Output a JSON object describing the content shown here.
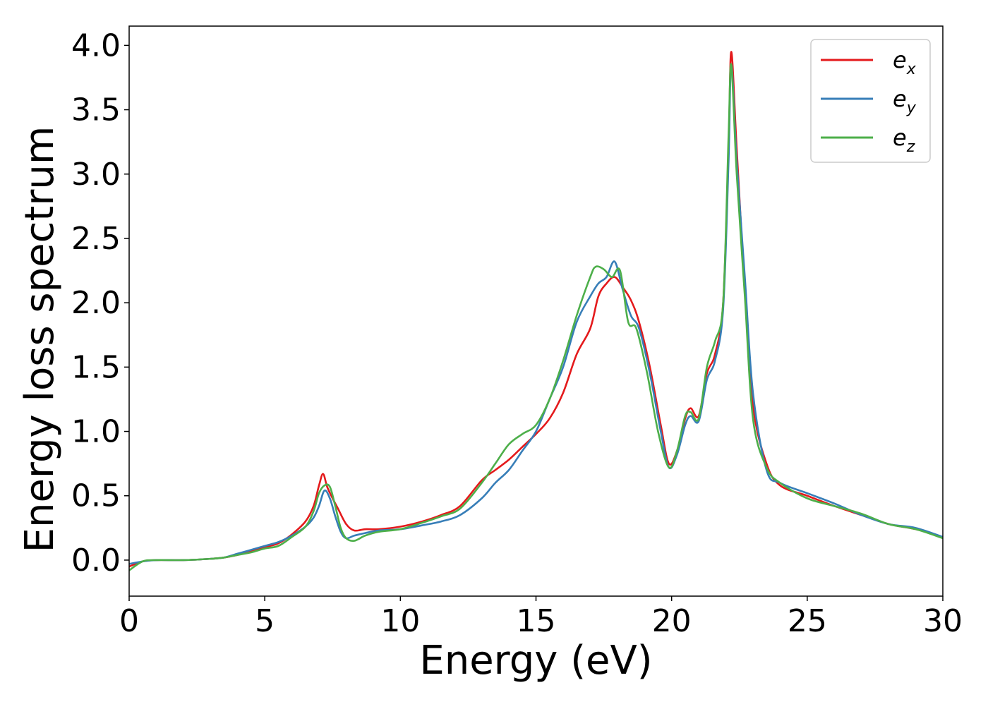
{
  "chart_data": {
    "type": "line",
    "title": "",
    "xlabel": "Energy (eV)",
    "ylabel": "Energy loss spectrum",
    "xlim": [
      0,
      30
    ],
    "ylim": [
      -0.28,
      4.15
    ],
    "xticks": [
      0,
      5,
      10,
      15,
      20,
      25,
      30
    ],
    "xtick_labels": [
      "0",
      "5",
      "10",
      "15",
      "20",
      "25",
      "30"
    ],
    "yticks": [
      0.0,
      0.5,
      1.0,
      1.5,
      2.0,
      2.5,
      3.0,
      3.5,
      4.0
    ],
    "ytick_labels": [
      "0.0",
      "0.5",
      "1.0",
      "1.5",
      "2.0",
      "2.5",
      "3.0",
      "3.5",
      "4.0"
    ],
    "grid": false,
    "legend_position": "top-right",
    "series": [
      {
        "name": "e",
        "subscript": "x",
        "color": "#e41a1c",
        "x": [
          0,
          0.5,
          1,
          2,
          3,
          3.5,
          4,
          4.5,
          5,
          5.5,
          6,
          6.5,
          6.8,
          7.0,
          7.15,
          7.3,
          7.5,
          7.7,
          8.0,
          8.3,
          8.7,
          9.2,
          10,
          10.8,
          11.5,
          12.2,
          13,
          13.5,
          14,
          14.5,
          15,
          15.5,
          16,
          16.5,
          17,
          17.3,
          17.6,
          17.9,
          18.2,
          18.5,
          18.8,
          19.2,
          19.6,
          19.9,
          20.2,
          20.5,
          20.7,
          21.0,
          21.3,
          21.6,
          21.9,
          22.1,
          22.2,
          22.4,
          22.7,
          23.0,
          23.5,
          24,
          25,
          26,
          27,
          28,
          29,
          30
        ],
        "y": [
          -0.05,
          -0.01,
          0.0,
          0.0,
          0.01,
          0.02,
          0.04,
          0.07,
          0.1,
          0.13,
          0.2,
          0.3,
          0.42,
          0.58,
          0.67,
          0.57,
          0.48,
          0.4,
          0.28,
          0.23,
          0.24,
          0.24,
          0.26,
          0.3,
          0.35,
          0.42,
          0.62,
          0.7,
          0.78,
          0.88,
          0.98,
          1.1,
          1.3,
          1.6,
          1.8,
          2.05,
          2.15,
          2.2,
          2.12,
          2.02,
          1.85,
          1.5,
          1.05,
          0.75,
          0.85,
          1.1,
          1.18,
          1.12,
          1.45,
          1.6,
          2.0,
          3.2,
          3.95,
          3.2,
          2.1,
          1.2,
          0.75,
          0.58,
          0.5,
          0.42,
          0.35,
          0.28,
          0.24,
          0.18
        ]
      },
      {
        "name": "e",
        "subscript": "y",
        "color": "#377eb8",
        "x": [
          0,
          0.5,
          1,
          2,
          3,
          3.5,
          4,
          4.5,
          5,
          5.5,
          6,
          6.5,
          6.8,
          7.0,
          7.2,
          7.4,
          7.6,
          7.8,
          8.0,
          8.3,
          8.7,
          9.2,
          10,
          10.8,
          11.5,
          12.2,
          13,
          13.5,
          14,
          14.5,
          15,
          15.5,
          16,
          16.5,
          17,
          17.3,
          17.6,
          17.9,
          18.2,
          18.5,
          18.8,
          19.2,
          19.6,
          19.9,
          20.2,
          20.5,
          20.7,
          21.0,
          21.3,
          21.6,
          21.9,
          22.1,
          22.2,
          22.4,
          22.7,
          23.0,
          23.5,
          24,
          25,
          26,
          27,
          28,
          29,
          30
        ],
        "y": [
          -0.03,
          -0.01,
          0.0,
          0.0,
          0.01,
          0.02,
          0.05,
          0.08,
          0.11,
          0.14,
          0.19,
          0.26,
          0.33,
          0.42,
          0.54,
          0.48,
          0.34,
          0.22,
          0.17,
          0.19,
          0.21,
          0.23,
          0.24,
          0.27,
          0.3,
          0.35,
          0.48,
          0.6,
          0.7,
          0.85,
          1.0,
          1.25,
          1.5,
          1.85,
          2.05,
          2.15,
          2.2,
          2.32,
          2.1,
          1.9,
          1.8,
          1.45,
          1.0,
          0.72,
          0.82,
          1.05,
          1.12,
          1.08,
          1.4,
          1.55,
          1.95,
          3.1,
          3.85,
          3.1,
          2.2,
          1.3,
          0.7,
          0.6,
          0.52,
          0.44,
          0.35,
          0.28,
          0.25,
          0.18
        ]
      },
      {
        "name": "e",
        "subscript": "z",
        "color": "#4daf4a",
        "x": [
          0,
          0.5,
          1,
          2,
          3,
          3.5,
          4,
          4.5,
          5,
          5.5,
          6,
          6.5,
          6.8,
          7.0,
          7.2,
          7.4,
          7.6,
          7.8,
          8.0,
          8.3,
          8.7,
          9.2,
          10,
          10.8,
          11.5,
          12.2,
          13,
          13.5,
          14,
          14.5,
          15,
          15.5,
          16,
          16.5,
          17,
          17.2,
          17.5,
          17.8,
          18.1,
          18.4,
          18.7,
          19.1,
          19.5,
          19.9,
          20.2,
          20.5,
          20.7,
          21.0,
          21.3,
          21.6,
          21.9,
          22.1,
          22.2,
          22.4,
          22.7,
          23.0,
          23.5,
          24,
          25,
          26,
          27,
          28,
          29,
          30
        ],
        "y": [
          -0.08,
          -0.01,
          0.0,
          0.0,
          0.01,
          0.02,
          0.04,
          0.06,
          0.09,
          0.11,
          0.18,
          0.26,
          0.38,
          0.52,
          0.58,
          0.57,
          0.42,
          0.25,
          0.17,
          0.15,
          0.19,
          0.22,
          0.24,
          0.29,
          0.34,
          0.4,
          0.6,
          0.75,
          0.9,
          0.98,
          1.05,
          1.25,
          1.55,
          1.9,
          2.2,
          2.28,
          2.26,
          2.2,
          2.25,
          1.85,
          1.8,
          1.45,
          1.0,
          0.72,
          0.85,
          1.12,
          1.15,
          1.1,
          1.5,
          1.7,
          2.0,
          3.3,
          3.85,
          3.0,
          2.05,
          1.1,
          0.72,
          0.6,
          0.48,
          0.42,
          0.36,
          0.28,
          0.24,
          0.17
        ]
      }
    ]
  }
}
